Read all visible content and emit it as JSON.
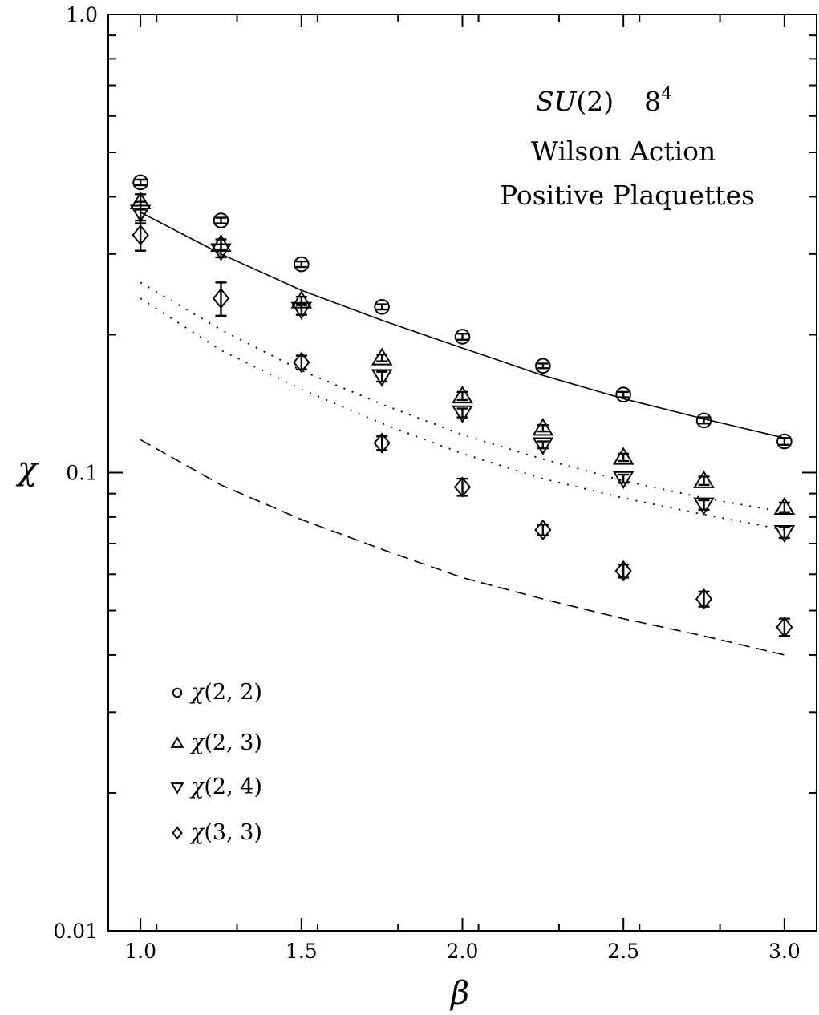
{
  "chart_data": {
    "type": "scatter",
    "xlabel": "β",
    "ylabel": "χ",
    "xlim": [
      0.9,
      3.1
    ],
    "ylim": [
      0.01,
      1.0
    ],
    "yscale": "log",
    "grid": false,
    "xticks": [
      1.0,
      1.5,
      2.0,
      2.5,
      3.0
    ],
    "xtick_labels": [
      "1.0",
      "1.5",
      "2.0",
      "2.5",
      "3.0"
    ],
    "ytick_labels": [
      "1.0",
      "0.1",
      "0.01"
    ],
    "annotations": {
      "line1_italic": "SU",
      "line1_rest": "(2)",
      "line1_lattice": "8",
      "line1_lattice_sup": "4",
      "line2": "Wilson Action",
      "line3": "Positive Plaquettes"
    },
    "legend_placement": "lower-left",
    "series": [
      {
        "name": "χ(2, 2)",
        "name_sym": "χ",
        "name_args": "(2, 2)",
        "marker": "circle",
        "x": [
          1.0,
          1.25,
          1.5,
          1.75,
          2.0,
          2.25,
          2.5,
          2.75,
          3.0
        ],
        "y": [
          0.43,
          0.355,
          0.285,
          0.23,
          0.198,
          0.171,
          0.148,
          0.13,
          0.117
        ],
        "err": [
          0.006,
          0.005,
          0.004,
          0.003,
          0.003,
          0.002,
          0.002,
          0.002,
          0.002
        ]
      },
      {
        "name": "χ(2, 3)",
        "name_sym": "χ",
        "name_args": "(2, 3)",
        "marker": "triangle-up",
        "x": [
          1.0,
          1.25,
          1.5,
          1.75,
          2.0,
          2.25,
          2.5,
          2.75,
          3.0
        ],
        "y": [
          0.39,
          0.315,
          0.237,
          0.178,
          0.147,
          0.125,
          0.108,
          0.096,
          0.084
        ],
        "err": [
          0.015,
          0.008,
          0.005,
          0.003,
          0.003,
          0.002,
          0.002,
          0.002,
          0.002
        ]
      },
      {
        "name": "χ(2, 4)",
        "name_sym": "χ",
        "name_args": "(2, 4)",
        "marker": "triangle-down",
        "x": [
          1.0,
          1.25,
          1.5,
          1.75,
          2.0,
          2.25,
          2.5,
          2.75,
          3.0
        ],
        "y": [
          0.37,
          0.305,
          0.227,
          0.162,
          0.135,
          0.115,
          0.097,
          0.085,
          0.074
        ],
        "err": [
          0.02,
          0.01,
          0.006,
          0.004,
          0.003,
          0.002,
          0.002,
          0.002,
          0.002
        ]
      },
      {
        "name": "χ(3, 3)",
        "name_sym": "χ",
        "name_args": "(3, 3)",
        "marker": "diamond",
        "x": [
          1.0,
          1.25,
          1.5,
          1.75,
          2.0,
          2.25,
          2.5,
          2.75,
          3.0
        ],
        "y": [
          0.33,
          0.24,
          0.174,
          0.116,
          0.093,
          0.075,
          0.061,
          0.053,
          0.046
        ],
        "err": [
          0.025,
          0.02,
          0.006,
          0.004,
          0.004,
          0.002,
          0.002,
          0.002,
          0.002
        ]
      }
    ],
    "curves": [
      {
        "style": "solid",
        "x": [
          1.0,
          1.25,
          1.5,
          1.75,
          2.0,
          2.25,
          2.5,
          2.75,
          3.0
        ],
        "y": [
          0.37,
          0.3,
          0.25,
          0.215,
          0.187,
          0.163,
          0.145,
          0.131,
          0.119
        ]
      },
      {
        "style": "dotted",
        "x": [
          1.0,
          1.25,
          1.5,
          1.75,
          2.0,
          2.25,
          2.5,
          2.75,
          3.0
        ],
        "y": [
          0.26,
          0.205,
          0.167,
          0.141,
          0.121,
          0.107,
          0.096,
          0.088,
          0.082
        ]
      },
      {
        "style": "dotted",
        "x": [
          1.0,
          1.25,
          1.5,
          1.75,
          2.0,
          2.25,
          2.5,
          2.75,
          3.0
        ],
        "y": [
          0.24,
          0.185,
          0.152,
          0.128,
          0.11,
          0.097,
          0.088,
          0.081,
          0.075
        ]
      },
      {
        "style": "dashed",
        "x": [
          1.0,
          1.25,
          1.5,
          1.75,
          2.0,
          2.25,
          2.5,
          2.75,
          3.0
        ],
        "y": [
          0.118,
          0.094,
          0.079,
          0.068,
          0.059,
          0.053,
          0.048,
          0.044,
          0.04
        ]
      }
    ]
  }
}
